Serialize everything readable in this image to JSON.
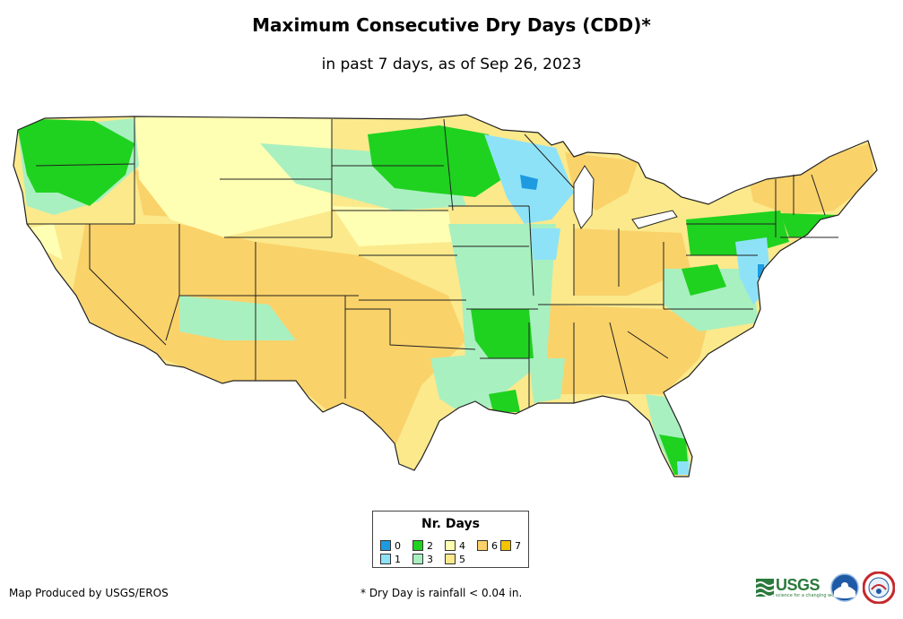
{
  "title": "Maximum Consecutive Dry Days (CDD)*",
  "subtitle": "in past 7 days, as of Sep 26, 2023",
  "legend": {
    "title": "Nr. Days",
    "items": [
      {
        "label": "0",
        "color": "#1e9be0"
      },
      {
        "label": "1",
        "color": "#8ee2f7"
      },
      {
        "label": "2",
        "color": "#1fd21f"
      },
      {
        "label": "3",
        "color": "#a9f0c0"
      },
      {
        "label": "4",
        "color": "#ffffb3"
      },
      {
        "label": "5",
        "color": "#fbe98c"
      },
      {
        "label": "6",
        "color": "#fad26a"
      },
      {
        "label": "7",
        "color": "#f5c400"
      }
    ]
  },
  "footer": {
    "credit": "Map Produced by USGS/EROS",
    "footnote": "* Dry Day is rainfall < 0.04 in."
  },
  "logos": {
    "usgs_text": "USGS",
    "usgs_tagline": "science for a changing world"
  }
}
